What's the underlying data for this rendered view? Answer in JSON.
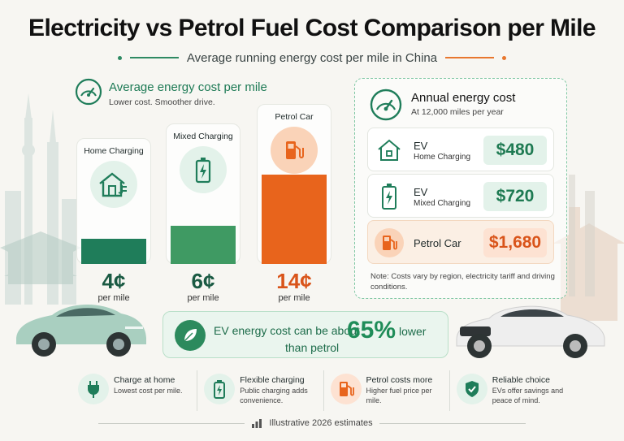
{
  "header": {
    "title": "Electricity vs Petrol Fuel Cost Comparison per Mile",
    "subtitle": "Average running energy cost per mile in China"
  },
  "left_section": {
    "title": "Average energy cost per mile",
    "subtitle": "Lower cost. Smoother drive.",
    "icon": "speedometer-icon"
  },
  "chart_data": {
    "type": "bar",
    "title": "Average energy cost per mile",
    "categories": [
      "Home Charging",
      "Mixed Charging",
      "Petrol Car"
    ],
    "values": [
      4,
      6,
      14
    ],
    "value_labels": [
      "4¢",
      "6¢",
      "14¢"
    ],
    "unit_label": "per mile",
    "ylim": [
      0,
      14
    ],
    "grid": false,
    "icons": [
      "house-plug-icon",
      "battery-icon",
      "fuel-pump-icon"
    ],
    "colors": [
      "#1f7d5a",
      "#3f9a63",
      "#e8641c"
    ]
  },
  "annual": {
    "title": "Annual energy cost",
    "subtitle": "At 12,000 miles per year",
    "rows": [
      {
        "name": "EV",
        "sub": "Home Charging",
        "value": "$480",
        "icon": "house-plug-icon"
      },
      {
        "name": "EV",
        "sub": "Mixed Charging",
        "value": "$720",
        "icon": "battery-icon"
      },
      {
        "name": "Petrol Car",
        "sub": "",
        "value": "$1,680",
        "icon": "fuel-pump-icon"
      }
    ],
    "note": "Note: Costs vary by region, electricity tariff and driving conditions."
  },
  "banner": {
    "text_before": "EV energy cost can be about",
    "percent": "65%",
    "text_after": "lower",
    "text_line2": "than petrol",
    "icon": "leaf-icon"
  },
  "features": [
    {
      "title": "Charge at home",
      "desc": "Lowest cost per mile.",
      "icon": "plug-icon"
    },
    {
      "title": "Flexible charging",
      "desc": "Public charging adds convenience.",
      "icon": "battery-icon"
    },
    {
      "title": "Petrol costs more",
      "desc": "Higher fuel price per mile.",
      "icon": "fuel-pump-icon"
    },
    {
      "title": "Reliable choice",
      "desc": "EVs offer savings and peace of mind.",
      "icon": "shield-check-icon"
    }
  ],
  "footer": {
    "text": "Illustrative 2026 estimates",
    "icon": "bar-chart-icon"
  },
  "colors": {
    "green": "#1f7d5a",
    "light_green": "#3f9a63",
    "orange": "#e8641c"
  }
}
